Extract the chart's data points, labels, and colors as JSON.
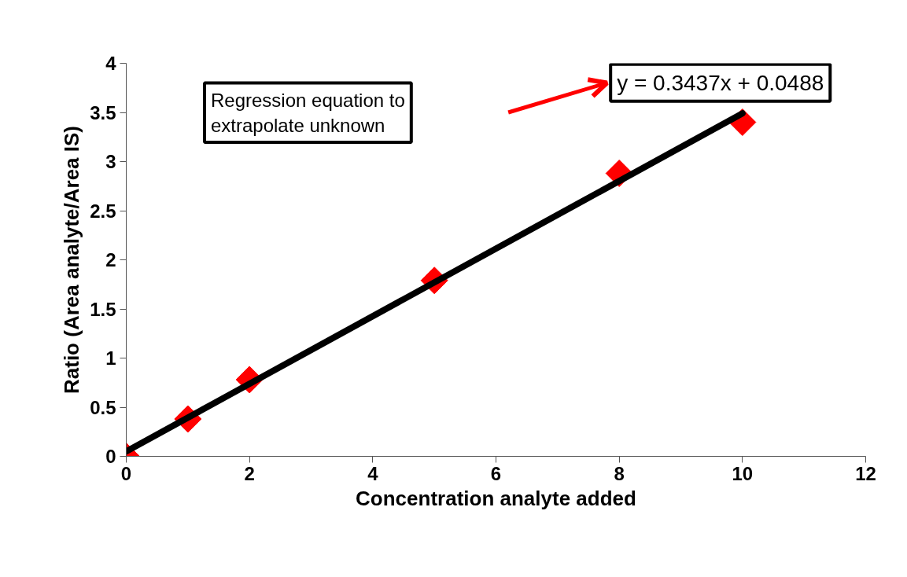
{
  "chart_data": {
    "type": "scatter",
    "xlabel": "Concentration analyte added",
    "ylabel": "Ratio (Area analyte/Area IS)",
    "x": [
      0,
      1,
      2,
      5,
      8,
      10
    ],
    "series": [
      {
        "color": "#ff0000",
        "marker": "diamond",
        "values": [
          0,
          0.38,
          0.78,
          1.79,
          2.88,
          3.4
        ]
      },
      {
        "type": "line",
        "color": "#000000",
        "x": [
          0,
          10
        ],
        "values": [
          0.05,
          3.49
        ]
      }
    ],
    "xlim": [
      0,
      12
    ],
    "ylim": [
      0,
      4
    ],
    "xticks": [
      0,
      2,
      4,
      6,
      8,
      10,
      12
    ],
    "yticks": [
      0,
      0.5,
      1,
      1.5,
      2,
      2.5,
      3,
      3.5,
      4
    ],
    "grid": false,
    "annotations": [
      "Regression equation to\nextrapolate unknown",
      "y = 0.3437x + 0.0488"
    ]
  }
}
